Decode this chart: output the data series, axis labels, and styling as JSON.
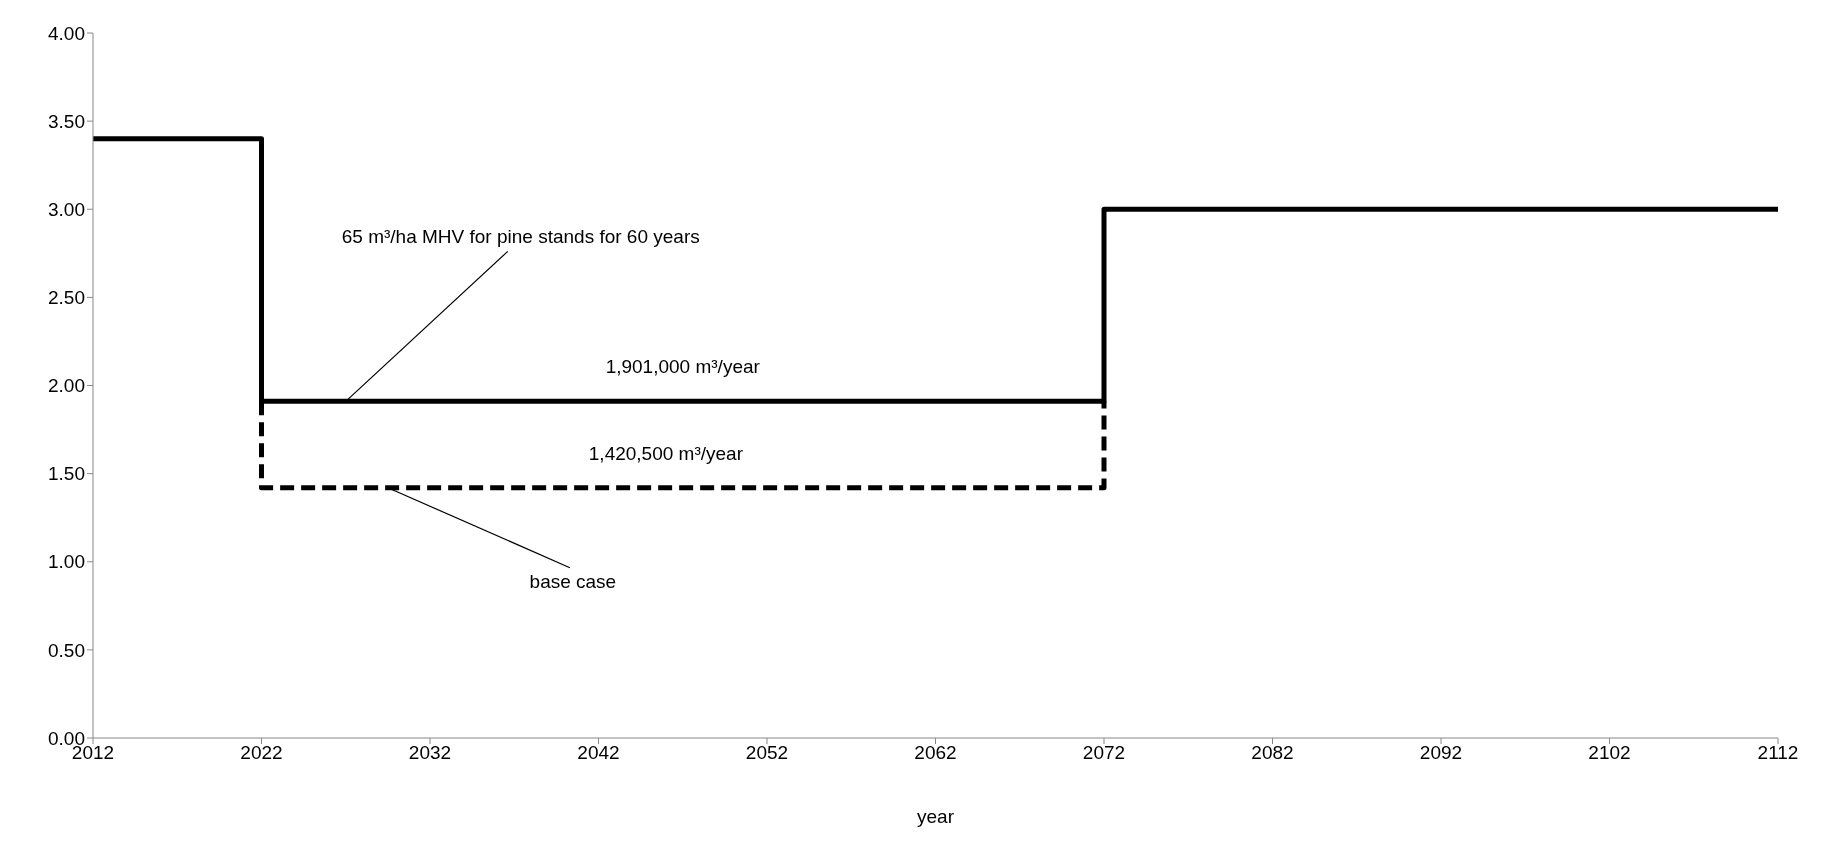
{
  "chart_data": {
    "type": "line",
    "xlabel": "year",
    "xlim": [
      2012,
      2112
    ],
    "xticks": [
      2012,
      2022,
      2032,
      2042,
      2052,
      2062,
      2072,
      2082,
      2092,
      2102,
      2112
    ],
    "ylim": [
      0,
      4
    ],
    "yticks": [
      {
        "value": 0,
        "label": "0.00"
      },
      {
        "value": 0.5,
        "label": "0.50"
      },
      {
        "value": 1,
        "label": "1.00"
      },
      {
        "value": 1.5,
        "label": "1.50"
      },
      {
        "value": 2,
        "label": "2.00"
      },
      {
        "value": 2.5,
        "label": "2.50"
      },
      {
        "value": 3,
        "label": "3.00"
      },
      {
        "value": 3.5,
        "label": "3.50"
      },
      {
        "value": 4,
        "label": "4.00"
      }
    ],
    "series": [
      {
        "color": "#000000",
        "line_style": "solid",
        "x": [
          2012,
          2022,
          2022,
          2072,
          2072,
          2112
        ],
        "values": [
          3.4,
          3.4,
          1.91,
          1.91,
          3.0,
          3.0
        ]
      },
      {
        "color": "#000000",
        "line_style": "dashed",
        "x": [
          2022,
          2022,
          2072,
          2072
        ],
        "values": [
          1.91,
          1.42,
          1.42,
          1.91
        ]
      }
    ],
    "annotations": [
      {
        "text": "65 m³/ha MHV for pine stands for 60 years",
        "x": 2027,
        "y": 1.91
      },
      {
        "text": "1,901,000 m³/year",
        "x": 2047,
        "y": 1.91
      },
      {
        "text": "1,420,500 m³/year",
        "x": 2046,
        "y": 1.42
      },
      {
        "text": "base case",
        "x": 2029.5,
        "y": 1.42
      }
    ]
  }
}
